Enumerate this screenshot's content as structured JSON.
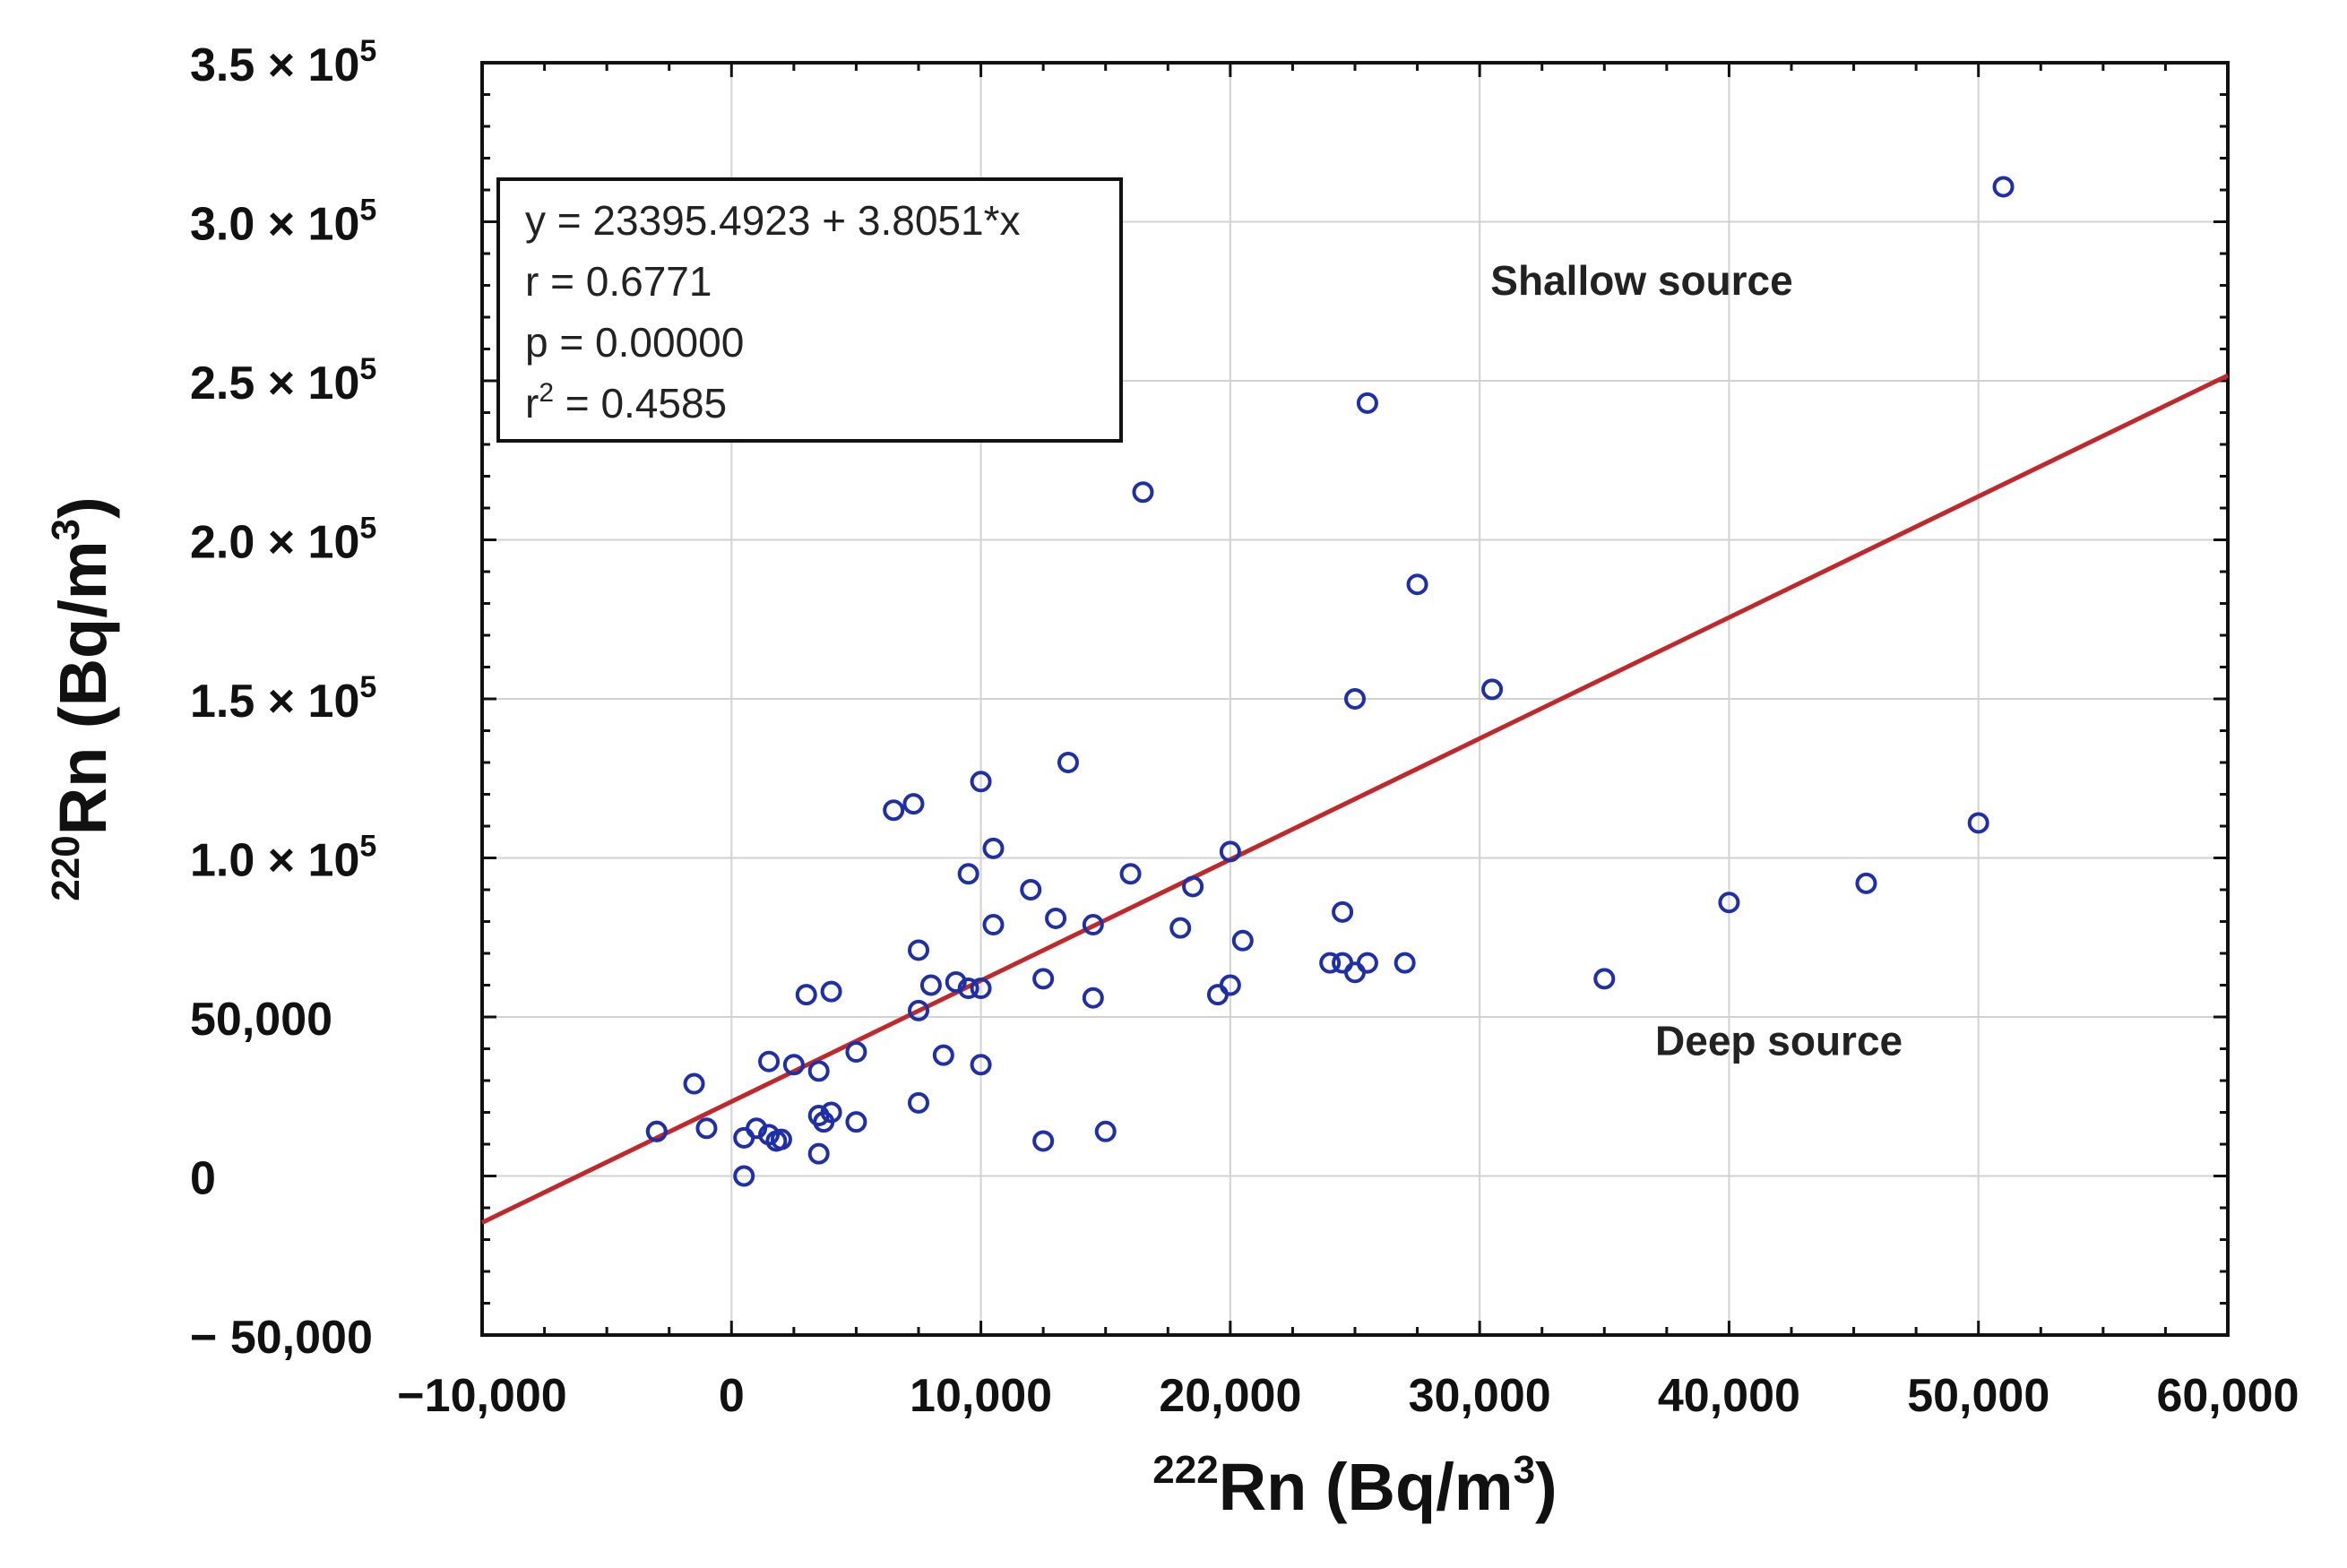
{
  "chart_data": {
    "type": "scatter",
    "title": "",
    "xlabel": {
      "sup": "222",
      "main": "Rn (Bq/m",
      "unit_sup": "3",
      "end": ")"
    },
    "ylabel": {
      "sup": "220",
      "main": "Rn (Bq/m",
      "unit_sup": "3",
      "end": ")"
    },
    "xlim": [
      -10000,
      60000
    ],
    "ylim": [
      -50000,
      350000
    ],
    "x_ticks": [
      {
        "value": -10000,
        "label": "−10,000"
      },
      {
        "value": 0,
        "label": "0"
      },
      {
        "value": 10000,
        "label": "10,000"
      },
      {
        "value": 20000,
        "label": "20,000"
      },
      {
        "value": 30000,
        "label": "30,000"
      },
      {
        "value": 40000,
        "label": "40,000"
      },
      {
        "value": 50000,
        "label": "50,000"
      },
      {
        "value": 60000,
        "label": "60,000"
      }
    ],
    "y_ticks": [
      {
        "value": -50000,
        "label": "− 50,000"
      },
      {
        "value": 0,
        "label": "0"
      },
      {
        "value": 50000,
        "label": "50,000"
      },
      {
        "value": 100000,
        "label": "1.0 × 10",
        "exp": "5"
      },
      {
        "value": 150000,
        "label": "1.5 × 10",
        "exp": "5"
      },
      {
        "value": 200000,
        "label": "2.0 × 10",
        "exp": "5"
      },
      {
        "value": 250000,
        "label": "2.5 × 10",
        "exp": "5"
      },
      {
        "value": 300000,
        "label": "3.0 × 10",
        "exp": "5"
      },
      {
        "value": 350000,
        "label": "3.5 × 10",
        "exp": "5"
      }
    ],
    "grid": true,
    "regression": {
      "intercept": 23395.4923,
      "slope": 3.8051,
      "color": "#c0282b"
    },
    "stats_box": {
      "equation": "y = 23395.4923 + 3.8051*x",
      "r": "r = 0.6771",
      "p": "p = 0.00000",
      "r2_prefix": "r",
      "r2_sup": "2",
      "r2_value": " = 0.4585"
    },
    "annotations": [
      {
        "text": "Shallow source",
        "x": 36500,
        "y": 277000
      },
      {
        "text": "Deep source",
        "x": 42000,
        "y": 38000
      }
    ],
    "point_color": "#1f2fa8",
    "points": [
      [
        51000,
        311000
      ],
      [
        25500,
        243000
      ],
      [
        16500,
        215000
      ],
      [
        27500,
        186000
      ],
      [
        25000,
        150000
      ],
      [
        30500,
        153000
      ],
      [
        13500,
        130000
      ],
      [
        10000,
        124000
      ],
      [
        6500,
        115000
      ],
      [
        7300,
        117000
      ],
      [
        10500,
        103000
      ],
      [
        20000,
        102000
      ],
      [
        9500,
        95000
      ],
      [
        16000,
        95000
      ],
      [
        18500,
        91000
      ],
      [
        12000,
        90000
      ],
      [
        13000,
        81000
      ],
      [
        14500,
        79000
      ],
      [
        18000,
        78000
      ],
      [
        10500,
        79000
      ],
      [
        20500,
        74000
      ],
      [
        7500,
        71000
      ],
      [
        24500,
        83000
      ],
      [
        24000,
        67000
      ],
      [
        24500,
        67000
      ],
      [
        25000,
        64000
      ],
      [
        25500,
        67000
      ],
      [
        27000,
        67000
      ],
      [
        35000,
        62000
      ],
      [
        40000,
        86000
      ],
      [
        45500,
        92000
      ],
      [
        50000,
        111000
      ],
      [
        12500,
        62000
      ],
      [
        8000,
        60000
      ],
      [
        9000,
        61000
      ],
      [
        9500,
        59000
      ],
      [
        10000,
        59000
      ],
      [
        14500,
        56000
      ],
      [
        19500,
        57000
      ],
      [
        20000,
        60000
      ],
      [
        3000,
        57000
      ],
      [
        4000,
        58000
      ],
      [
        7500,
        52000
      ],
      [
        5000,
        39000
      ],
      [
        1500,
        36000
      ],
      [
        2500,
        35000
      ],
      [
        3500,
        33000
      ],
      [
        -1500,
        29000
      ],
      [
        8500,
        38000
      ],
      [
        10000,
        35000
      ],
      [
        7500,
        23000
      ],
      [
        4000,
        20000
      ],
      [
        3500,
        19000
      ],
      [
        3700,
        17000
      ],
      [
        5000,
        17000
      ],
      [
        -1000,
        15000
      ],
      [
        -3000,
        14000
      ],
      [
        1000,
        15000
      ],
      [
        1500,
        13000
      ],
      [
        500,
        12000
      ],
      [
        1800,
        11000
      ],
      [
        2000,
        11500
      ],
      [
        3500,
        7000
      ],
      [
        500,
        0
      ],
      [
        12500,
        11000
      ],
      [
        15000,
        14000
      ],
      [
        -3000,
        14000
      ]
    ]
  }
}
